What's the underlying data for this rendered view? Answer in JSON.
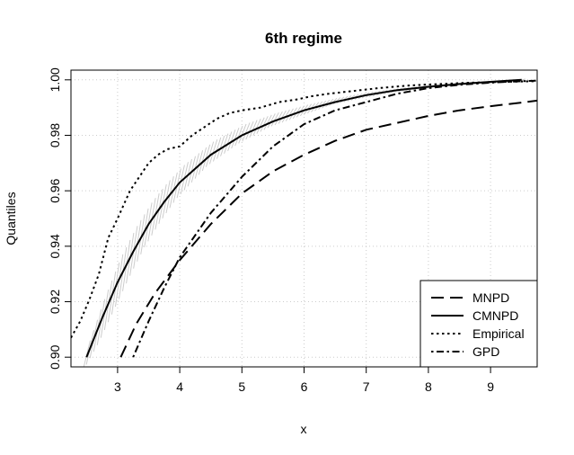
{
  "chart_data": {
    "type": "line",
    "title": "6th regime",
    "xlabel": "x",
    "ylabel": "Quantiles",
    "xlim": [
      2.25,
      9.75
    ],
    "ylim": [
      0.8965,
      1.0035
    ],
    "x_ticks": [
      3,
      4,
      5,
      6,
      7,
      8,
      9
    ],
    "y_ticks": [
      0.9,
      0.92,
      0.94,
      0.96,
      0.98,
      1.0
    ],
    "y_tick_labels": [
      "0.90",
      "0.92",
      "0.94",
      "0.96",
      "0.98",
      "1.00"
    ],
    "x_tick_labels": [
      "3",
      "4",
      "5",
      "6",
      "7",
      "8",
      "9"
    ],
    "grid": true,
    "legend_position": "bottom-right",
    "series": [
      {
        "name": "MNPD",
        "dash": "long-dash",
        "x": [
          3.05,
          3.3,
          3.6,
          4.0,
          4.5,
          5.0,
          5.5,
          6.0,
          6.5,
          7.0,
          7.5,
          8.0,
          8.5,
          9.0,
          9.5,
          9.75
        ],
        "y": [
          0.9,
          0.912,
          0.923,
          0.935,
          0.948,
          0.959,
          0.967,
          0.973,
          0.978,
          0.982,
          0.9845,
          0.987,
          0.989,
          0.9905,
          0.9918,
          0.9925
        ]
      },
      {
        "name": "CMNPD",
        "dash": "solid",
        "x": [
          2.5,
          2.75,
          3.0,
          3.25,
          3.5,
          3.75,
          4.0,
          4.5,
          5.0,
          5.5,
          6.0,
          6.5,
          7.0,
          7.5,
          8.0,
          8.5,
          9.0,
          9.5
        ],
        "y": [
          0.9,
          0.914,
          0.927,
          0.938,
          0.948,
          0.956,
          0.963,
          0.973,
          0.98,
          0.985,
          0.989,
          0.992,
          0.9945,
          0.9963,
          0.9975,
          0.9985,
          0.9993,
          1.0
        ]
      },
      {
        "name": "Empirical",
        "dash": "dotted",
        "x": [
          2.25,
          2.4,
          2.55,
          2.7,
          2.85,
          3.0,
          3.1,
          3.2,
          3.35,
          3.5,
          3.65,
          3.8,
          4.0,
          4.2,
          4.4,
          4.6,
          4.8,
          5.0,
          5.3,
          5.6,
          5.9,
          6.1,
          6.4,
          6.8,
          7.2,
          7.7,
          8.2,
          8.7,
          9.2,
          9.75
        ],
        "y": [
          0.907,
          0.913,
          0.921,
          0.93,
          0.943,
          0.95,
          0.955,
          0.96,
          0.965,
          0.97,
          0.973,
          0.975,
          0.976,
          0.98,
          0.983,
          0.986,
          0.988,
          0.989,
          0.99,
          0.992,
          0.993,
          0.994,
          0.995,
          0.996,
          0.997,
          0.998,
          0.9985,
          0.999,
          0.9993,
          0.9995
        ]
      },
      {
        "name": "GPD",
        "dash": "dot-dash",
        "x": [
          3.25,
          3.5,
          3.75,
          4.0,
          4.25,
          4.5,
          5.0,
          5.5,
          6.0,
          6.5,
          7.0,
          7.5,
          8.0,
          8.5,
          9.0,
          9.5,
          9.75
        ],
        "y": [
          0.9,
          0.913,
          0.925,
          0.936,
          0.944,
          0.952,
          0.965,
          0.976,
          0.984,
          0.989,
          0.992,
          0.995,
          0.997,
          0.9982,
          0.999,
          0.9995,
          0.9997
        ]
      }
    ],
    "band": {
      "name": "CMNPD confidence band",
      "color": "#cccccc",
      "x": [
        2.5,
        2.75,
        3.0,
        3.25,
        3.5,
        3.75,
        4.0,
        4.5,
        5.0,
        5.5,
        6.0,
        6.5,
        7.0,
        7.5,
        8.0,
        8.5,
        9.0,
        9.5
      ],
      "lower": [
        0.895,
        0.905,
        0.917,
        0.929,
        0.94,
        0.949,
        0.957,
        0.969,
        0.977,
        0.983,
        0.987,
        0.991,
        0.9935,
        0.9955,
        0.997,
        0.998,
        0.9988,
        0.9995
      ],
      "upper": [
        0.906,
        0.922,
        0.936,
        0.947,
        0.956,
        0.963,
        0.969,
        0.978,
        0.984,
        0.988,
        0.991,
        0.9935,
        0.9955,
        0.997,
        0.998,
        0.9988,
        0.9995,
        1.0003
      ]
    }
  }
}
